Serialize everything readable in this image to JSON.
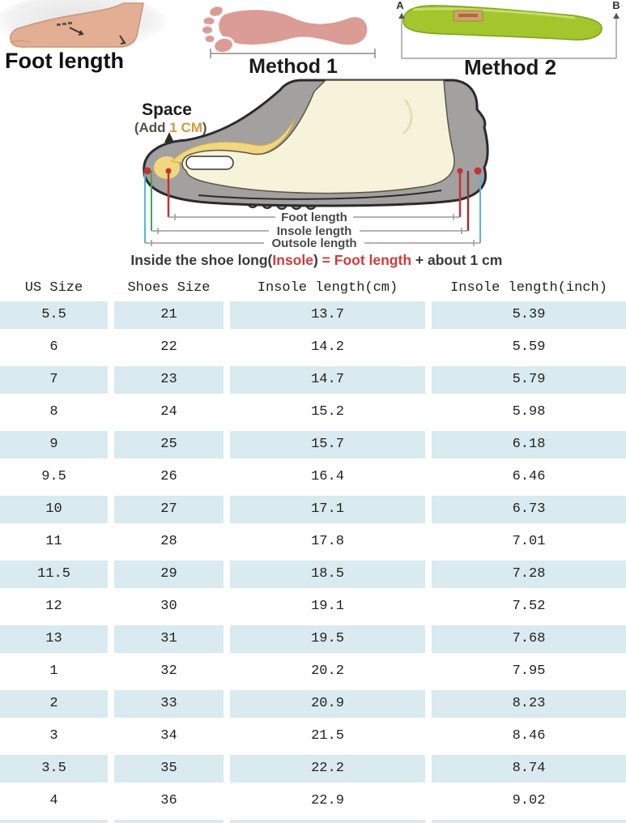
{
  "colors": {
    "row_alt_blue": "#d9eaf0",
    "table_text": "#222222",
    "accent_red": "#cf3b3b",
    "space_value_orange": "#cf9a3e",
    "measure_red": "#c23434",
    "measure_dark_red": "#8e3636",
    "measure_green": "#3fa65c",
    "measure_cyan": "#56b6d9",
    "shoe_gray": "#a3a0a0",
    "foot_cream": "#f7f3da",
    "insole_yellow": "#f1d77f",
    "insole_green": "#a3c62c",
    "footprint_pink": "#db9c96",
    "skin_tone": "#e2ae94"
  },
  "top_methods": {
    "foot_photo_label": "Foot length",
    "method1_label": "Method 1",
    "method2_label": "Method 2",
    "point_a": "A",
    "point_b": "B"
  },
  "shoe_diagram": {
    "space_title": "Space",
    "space_note": {
      "prefix": "(Add ",
      "value": "1 CM",
      "suffix": ")"
    },
    "measure_labels": {
      "foot": "Foot length",
      "insole": "Insole length",
      "outsole": "Outsole length"
    },
    "formula": {
      "lead": "Inside the shoe long(",
      "insole": "Insole",
      "mid": ") ",
      "equals_foot": "= Foot length",
      "tail": " + about 1 cm"
    }
  },
  "size_table": {
    "headers": [
      "US Size",
      "Shoes Size",
      "Insole length(cm)",
      "Insole length(inch)"
    ],
    "rows": [
      [
        "5.5",
        "21",
        "13.7",
        "5.39"
      ],
      [
        "6",
        "22",
        "14.2",
        "5.59"
      ],
      [
        "7",
        "23",
        "14.7",
        "5.79"
      ],
      [
        "8",
        "24",
        "15.2",
        "5.98"
      ],
      [
        "9",
        "25",
        "15.7",
        "6.18"
      ],
      [
        "9.5",
        "26",
        "16.4",
        "6.46"
      ],
      [
        "10",
        "27",
        "17.1",
        "6.73"
      ],
      [
        "11",
        "28",
        "17.8",
        "7.01"
      ],
      [
        "11.5",
        "29",
        "18.5",
        "7.28"
      ],
      [
        "12",
        "30",
        "19.1",
        "7.52"
      ],
      [
        "13",
        "31",
        "19.5",
        "7.68"
      ],
      [
        "1",
        "32",
        "20.2",
        "7.95"
      ],
      [
        "2",
        "33",
        "20.9",
        "8.23"
      ],
      [
        "3",
        "34",
        "21.5",
        "8.46"
      ],
      [
        "3.5",
        "35",
        "22.2",
        "8.74"
      ],
      [
        "4",
        "36",
        "22.9",
        "9.02"
      ]
    ]
  }
}
